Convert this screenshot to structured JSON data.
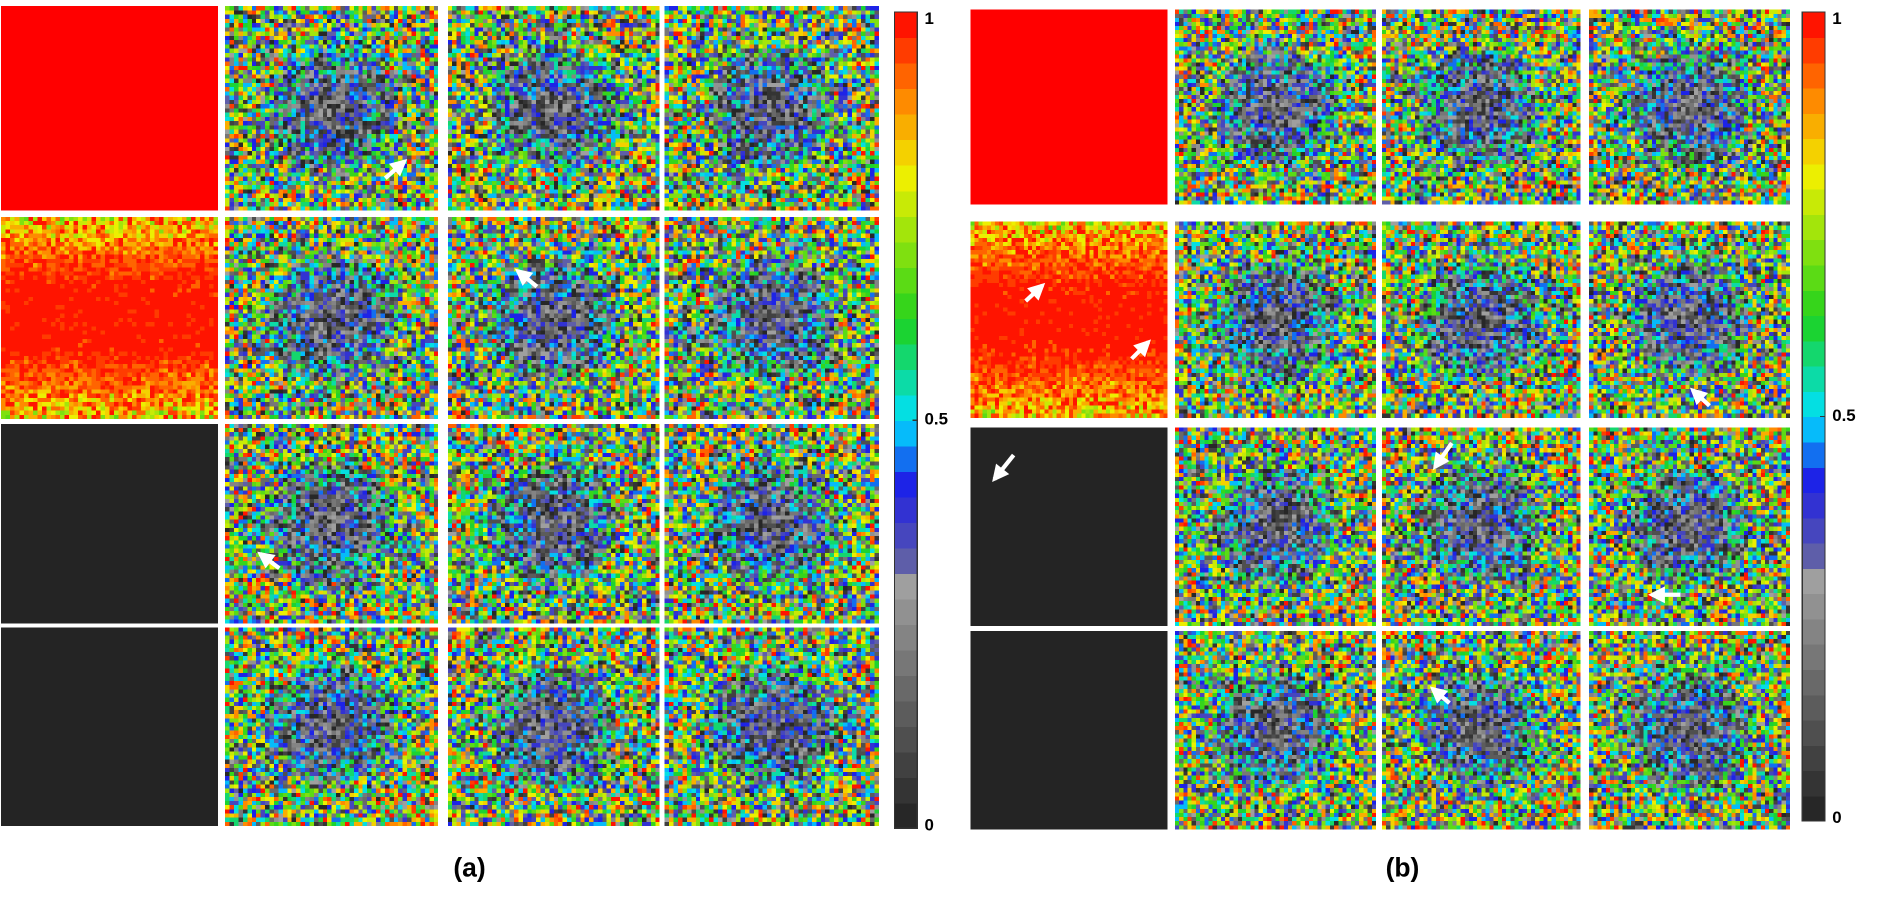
{
  "figure": {
    "panels": [
      {
        "label": "(a)",
        "colorbar": {
          "ticks": [
            0,
            0.5,
            1
          ]
        }
      },
      {
        "label": "(b)",
        "colorbar": {
          "ticks": [
            0,
            0.5,
            1
          ]
        }
      }
    ]
  }
}
